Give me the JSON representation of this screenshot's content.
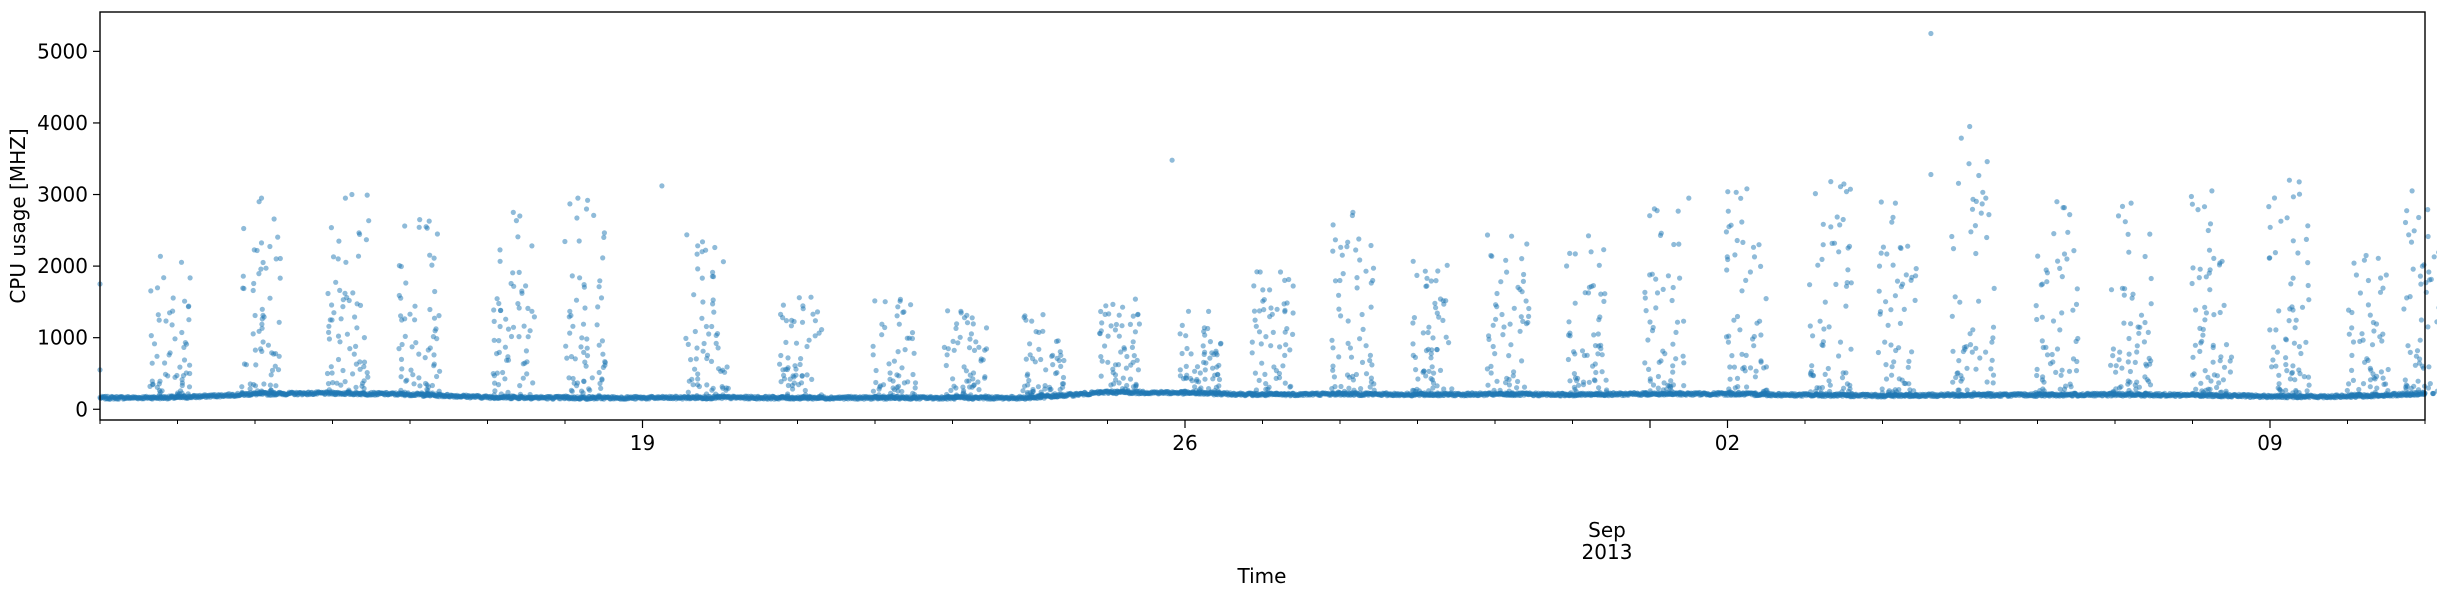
{
  "chart_data": {
    "type": "scatter",
    "xlabel": "Time",
    "ylabel": "CPU usage [MHZ]",
    "xlim": [
      "2013-08-12",
      "2013-09-11"
    ],
    "ylim": [
      -150,
      5550
    ],
    "grid": false,
    "yticks": [
      0,
      1000,
      2000,
      3000,
      4000,
      5000
    ],
    "xticks": [
      {
        "date": "2013-08-19",
        "label": "19"
      },
      {
        "date": "2013-08-26",
        "label": "26"
      },
      {
        "date": "2013-09-02",
        "label": "02"
      },
      {
        "date": "2013-09-09",
        "label": "09"
      }
    ],
    "month_label": "Sep",
    "year_label": "2013",
    "point_color": "#1f77b4",
    "point_opacity": 0.5,
    "baseline_series": [
      {
        "x": "2013-08-12 00:00",
        "y": 160
      },
      {
        "x": "2013-08-13 00:00",
        "y": 165
      },
      {
        "x": "2013-08-14 00:00",
        "y": 215
      },
      {
        "x": "2013-08-15 00:00",
        "y": 225
      },
      {
        "x": "2013-08-16 00:00",
        "y": 210
      },
      {
        "x": "2013-08-17 00:00",
        "y": 170
      },
      {
        "x": "2013-08-18 00:00",
        "y": 160
      },
      {
        "x": "2013-08-19 00:00",
        "y": 160
      },
      {
        "x": "2013-08-20 00:00",
        "y": 165
      },
      {
        "x": "2013-08-21 00:00",
        "y": 160
      },
      {
        "x": "2013-08-22 00:00",
        "y": 160
      },
      {
        "x": "2013-08-23 00:00",
        "y": 160
      },
      {
        "x": "2013-08-24 00:00",
        "y": 160
      },
      {
        "x": "2013-08-25 00:00",
        "y": 240
      },
      {
        "x": "2013-08-26 00:00",
        "y": 230
      },
      {
        "x": "2013-08-27 00:00",
        "y": 205
      },
      {
        "x": "2013-08-28 00:00",
        "y": 215
      },
      {
        "x": "2013-08-29 00:00",
        "y": 205
      },
      {
        "x": "2013-08-30 00:00",
        "y": 210
      },
      {
        "x": "2013-08-31 00:00",
        "y": 205
      },
      {
        "x": "2013-09-01 00:00",
        "y": 215
      },
      {
        "x": "2013-09-02 00:00",
        "y": 215
      },
      {
        "x": "2013-09-03 00:00",
        "y": 200
      },
      {
        "x": "2013-09-04 00:00",
        "y": 190
      },
      {
        "x": "2013-09-05 00:00",
        "y": 200
      },
      {
        "x": "2013-09-06 00:00",
        "y": 200
      },
      {
        "x": "2013-09-07 00:00",
        "y": 205
      },
      {
        "x": "2013-09-08 00:00",
        "y": 200
      },
      {
        "x": "2013-09-09 00:00",
        "y": 180
      },
      {
        "x": "2013-09-10 00:00",
        "y": 180
      },
      {
        "x": "2013-09-11 00:00",
        "y": 220
      }
    ],
    "bursts": [
      {
        "x": "2013-08-12 22:00",
        "y_max": 2150
      },
      {
        "x": "2013-08-14 02:00",
        "y_max": 2950
      },
      {
        "x": "2013-08-15 05:00",
        "y_max": 3000
      },
      {
        "x": "2013-08-16 03:00",
        "y_max": 2650
      },
      {
        "x": "2013-08-17 08:00",
        "y_max": 2750
      },
      {
        "x": "2013-08-18 06:00",
        "y_max": 2950
      },
      {
        "x": "2013-08-19 20:00",
        "y_max": 2450
      },
      {
        "x": "2013-08-21 01:00",
        "y_max": 1600
      },
      {
        "x": "2013-08-22 06:00",
        "y_max": 1550
      },
      {
        "x": "2013-08-23 04:00",
        "y_max": 1400
      },
      {
        "x": "2013-08-24 04:00",
        "y_max": 1350
      },
      {
        "x": "2013-08-25 04:00",
        "y_max": 1550
      },
      {
        "x": "2013-08-26 05:00",
        "y_max": 1400
      },
      {
        "x": "2013-08-27 03:00",
        "y_max": 1950
      },
      {
        "x": "2013-08-28 04:00",
        "y_max": 2750
      },
      {
        "x": "2013-08-29 05:00",
        "y_max": 2100
      },
      {
        "x": "2013-08-30 04:00",
        "y_max": 2450
      },
      {
        "x": "2013-08-31 04:00",
        "y_max": 2450
      },
      {
        "x": "2013-09-01 04:00",
        "y_max": 2950
      },
      {
        "x": "2013-09-02 06:00",
        "y_max": 3050
      },
      {
        "x": "2013-09-03 08:00",
        "y_max": 3150
      },
      {
        "x": "2013-09-04 04:00",
        "y_max": 2900
      },
      {
        "x": "2013-09-05 04:00",
        "y_max": 3950
      },
      {
        "x": "2013-09-06 06:00",
        "y_max": 2900
      },
      {
        "x": "2013-09-07 05:00",
        "y_max": 2950
      },
      {
        "x": "2013-09-08 06:00",
        "y_max": 3050
      },
      {
        "x": "2013-09-09 06:00",
        "y_max": 3200
      },
      {
        "x": "2013-09-10 06:00",
        "y_max": 2150
      },
      {
        "x": "2013-09-11 00:00",
        "y_max": 3000
      }
    ],
    "outliers": [
      {
        "x": "2013-08-12 00:00",
        "y": 1750
      },
      {
        "x": "2013-08-12 00:00",
        "y": 550
      },
      {
        "x": "2013-08-14 02:00",
        "y": 2950
      },
      {
        "x": "2013-08-14 02:30",
        "y": 2050
      },
      {
        "x": "2013-08-15 04:00",
        "y": 2950
      },
      {
        "x": "2013-08-15 06:00",
        "y": 3000
      },
      {
        "x": "2013-08-16 03:00",
        "y": 2650
      },
      {
        "x": "2013-08-16 05:00",
        "y": 2550
      },
      {
        "x": "2013-08-17 08:00",
        "y": 2750
      },
      {
        "x": "2013-08-17 10:00",
        "y": 2700
      },
      {
        "x": "2013-08-18 04:00",
        "y": 2950
      },
      {
        "x": "2013-08-18 07:00",
        "y": 2920
      },
      {
        "x": "2013-08-19 06:00",
        "y": 3120
      },
      {
        "x": "2013-08-25 20:00",
        "y": 3480
      },
      {
        "x": "2013-08-28 04:00",
        "y": 2750
      },
      {
        "x": "2013-09-01 12:00",
        "y": 2950
      },
      {
        "x": "2013-09-02 06:00",
        "y": 3080
      },
      {
        "x": "2013-09-03 08:00",
        "y": 3180
      },
      {
        "x": "2013-09-03 11:00",
        "y": 3110
      },
      {
        "x": "2013-09-04 04:00",
        "y": 2880
      },
      {
        "x": "2013-09-04 15:00",
        "y": 5250
      },
      {
        "x": "2013-09-04 15:00",
        "y": 3280
      },
      {
        "x": "2013-09-05 03:00",
        "y": 3950
      },
      {
        "x": "2013-09-05 08:00",
        "y": 2950
      },
      {
        "x": "2013-09-06 06:00",
        "y": 2900
      },
      {
        "x": "2013-09-07 05:00",
        "y": 2880
      },
      {
        "x": "2013-09-08 06:00",
        "y": 3050
      },
      {
        "x": "2013-09-09 06:00",
        "y": 3200
      },
      {
        "x": "2013-09-10 20:00",
        "y": 3050
      }
    ]
  }
}
